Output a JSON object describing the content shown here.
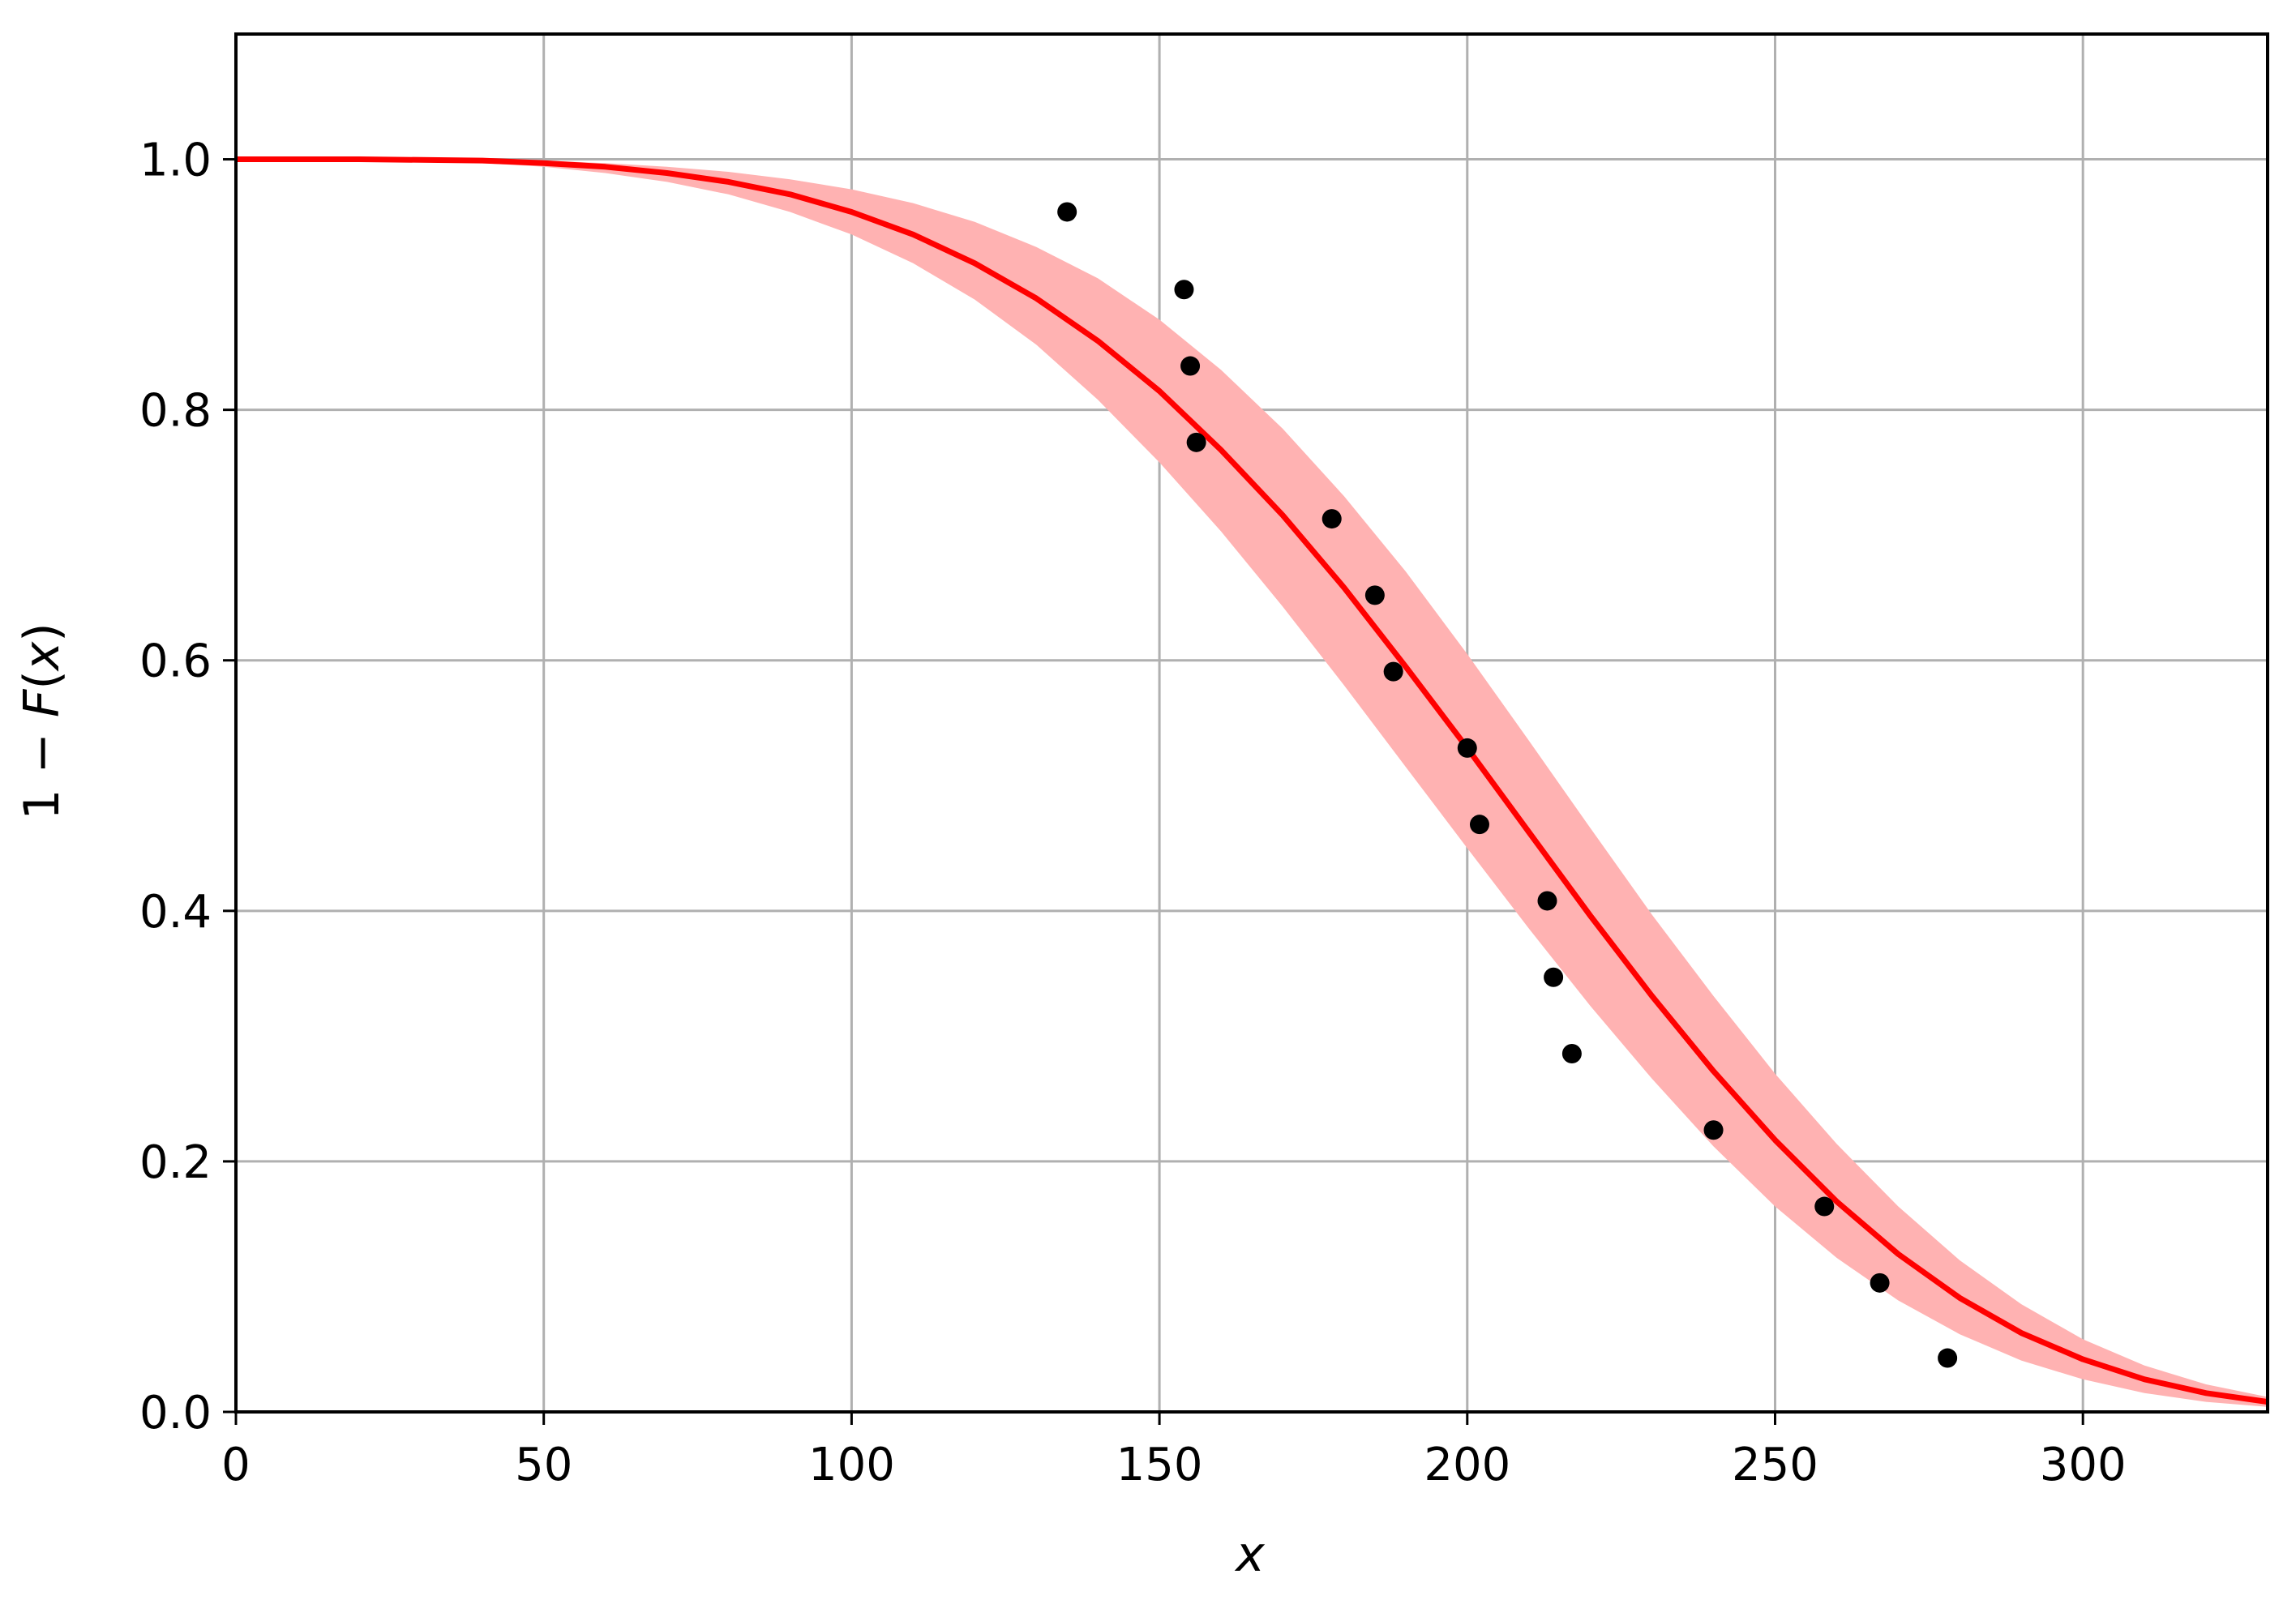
{
  "chart_data": {
    "type": "scatter",
    "title": "",
    "xlabel": "x",
    "ylabel_parts": {
      "lead": "1 − ",
      "func": "F",
      "open": "(",
      "var": "x",
      "close": ")"
    },
    "xlim": [
      0,
      330
    ],
    "ylim": [
      0,
      1.1
    ],
    "xticks": [
      0,
      50,
      100,
      150,
      200,
      250,
      300
    ],
    "xtick_labels": [
      "0",
      "50",
      "100",
      "150",
      "200",
      "250",
      "300"
    ],
    "yticks": [
      0.0,
      0.2,
      0.4,
      0.6,
      0.8,
      1.0
    ],
    "ytick_labels": [
      "0.0",
      "0.2",
      "0.4",
      "0.6",
      "0.8",
      "1.0"
    ],
    "grid": true,
    "colors": {
      "curve": "#ff0000",
      "band": "#ffb2b2",
      "points": "#000000",
      "grid": "#b0b0b0",
      "axes": "#000000"
    },
    "fitted_curve": {
      "type": "line",
      "x": [
        0,
        20,
        40,
        50,
        60,
        70,
        80,
        90,
        100,
        110,
        120,
        130,
        140,
        150,
        160,
        170,
        180,
        190,
        200,
        210,
        220,
        230,
        240,
        250,
        260,
        270,
        280,
        290,
        300,
        310,
        320,
        330
      ],
      "y": [
        1.0,
        1.0,
        0.999,
        0.997,
        0.994,
        0.989,
        0.982,
        0.972,
        0.958,
        0.94,
        0.917,
        0.889,
        0.855,
        0.815,
        0.768,
        0.716,
        0.658,
        0.595,
        0.53,
        0.463,
        0.396,
        0.332,
        0.272,
        0.217,
        0.168,
        0.126,
        0.091,
        0.063,
        0.042,
        0.026,
        0.015,
        0.008
      ]
    },
    "confidence_band": {
      "type": "area",
      "x": [
        0,
        20,
        40,
        50,
        60,
        70,
        80,
        90,
        100,
        110,
        120,
        130,
        140,
        150,
        160,
        170,
        180,
        190,
        200,
        210,
        220,
        230,
        240,
        250,
        260,
        270,
        280,
        290,
        300,
        310,
        320,
        330
      ],
      "upper": [
        1.0,
        1.0,
        1.0,
        0.999,
        0.997,
        0.994,
        0.99,
        0.984,
        0.976,
        0.965,
        0.95,
        0.93,
        0.905,
        0.872,
        0.832,
        0.785,
        0.731,
        0.671,
        0.605,
        0.536,
        0.466,
        0.397,
        0.332,
        0.27,
        0.214,
        0.164,
        0.121,
        0.086,
        0.058,
        0.037,
        0.022,
        0.012
      ],
      "lower": [
        1.0,
        0.999,
        0.997,
        0.994,
        0.989,
        0.982,
        0.972,
        0.958,
        0.94,
        0.917,
        0.888,
        0.852,
        0.808,
        0.758,
        0.703,
        0.643,
        0.58,
        0.515,
        0.45,
        0.386,
        0.324,
        0.266,
        0.212,
        0.164,
        0.123,
        0.089,
        0.062,
        0.041,
        0.026,
        0.015,
        0.008,
        0.004
      ]
    },
    "observations": {
      "type": "scatter",
      "x": [
        135,
        154,
        155,
        156,
        178,
        185,
        188,
        200,
        202,
        213,
        214,
        217,
        240,
        258,
        267,
        278
      ],
      "y": [
        0.958,
        0.896,
        0.835,
        0.774,
        0.713,
        0.652,
        0.591,
        0.53,
        0.469,
        0.408,
        0.347,
        0.286,
        0.225,
        0.164,
        0.103,
        0.043
      ]
    }
  }
}
